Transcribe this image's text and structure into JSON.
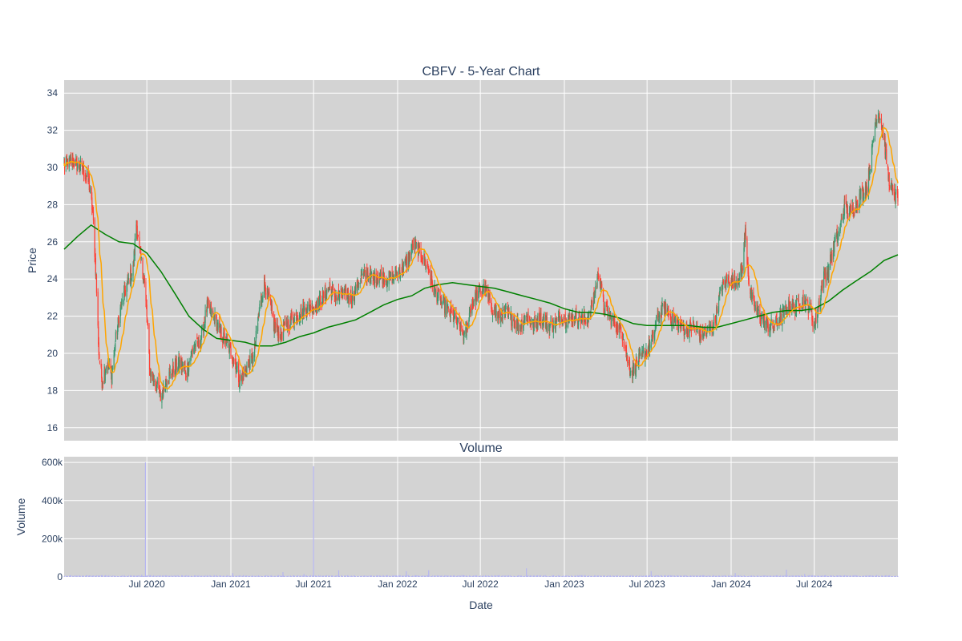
{
  "chart_data": {
    "type": "candlestick",
    "title": "CBFV - 5-Year Chart",
    "price_panel": {
      "ylabel": "Price",
      "ylim": [
        15.3,
        34.7
      ],
      "yticks": [
        16,
        18,
        20,
        22,
        24,
        26,
        28,
        30,
        32,
        34
      ],
      "grid": true,
      "background": "#d3d3d3",
      "colors": {
        "up": "#3d9970",
        "down": "#ff4136",
        "ma_short": "#ffa500",
        "ma_long": "#008000"
      },
      "close_approx": [
        [
          "2020-01-02",
          30.1
        ],
        [
          "2020-01-20",
          30.3
        ],
        [
          "2020-02-10",
          30.0
        ],
        [
          "2020-02-25",
          29.2
        ],
        [
          "2020-03-05",
          27.5
        ],
        [
          "2020-03-12",
          24.0
        ],
        [
          "2020-03-18",
          20.0
        ],
        [
          "2020-03-25",
          18.5
        ],
        [
          "2020-04-05",
          19.5
        ],
        [
          "2020-04-15",
          18.8
        ],
        [
          "2020-04-25",
          21.0
        ],
        [
          "2020-05-05",
          22.5
        ],
        [
          "2020-05-20",
          23.8
        ],
        [
          "2020-06-01",
          24.5
        ],
        [
          "2020-06-08",
          27.0
        ],
        [
          "2020-06-15",
          25.5
        ],
        [
          "2020-06-25",
          24.0
        ],
        [
          "2020-07-01",
          22.0
        ],
        [
          "2020-07-08",
          19.0
        ],
        [
          "2020-07-20",
          18.5
        ],
        [
          "2020-08-01",
          17.5
        ],
        [
          "2020-08-10",
          18.5
        ],
        [
          "2020-08-25",
          19.0
        ],
        [
          "2020-09-10",
          19.5
        ],
        [
          "2020-09-25",
          19.0
        ],
        [
          "2020-10-10",
          20.3
        ],
        [
          "2020-10-25",
          20.5
        ],
        [
          "2020-11-10",
          22.5
        ],
        [
          "2020-11-25",
          22.0
        ],
        [
          "2020-12-10",
          21.0
        ],
        [
          "2020-12-25",
          20.5
        ],
        [
          "2021-01-10",
          19.5
        ],
        [
          "2021-01-20",
          18.5
        ],
        [
          "2021-02-05",
          19.2
        ],
        [
          "2021-02-20",
          19.8
        ],
        [
          "2021-03-05",
          22.5
        ],
        [
          "2021-03-15",
          23.8
        ],
        [
          "2021-03-25",
          23.0
        ],
        [
          "2021-04-05",
          21.5
        ],
        [
          "2021-04-20",
          21.0
        ],
        [
          "2021-05-05",
          21.5
        ],
        [
          "2021-05-20",
          22.0
        ],
        [
          "2021-06-05",
          22.2
        ],
        [
          "2021-06-20",
          22.5
        ],
        [
          "2021-07-05",
          22.5
        ],
        [
          "2021-07-20",
          23.0
        ],
        [
          "2021-08-05",
          23.5
        ],
        [
          "2021-08-20",
          23.0
        ],
        [
          "2021-09-05",
          23.2
        ],
        [
          "2021-09-25",
          23.0
        ],
        [
          "2021-10-10",
          24.0
        ],
        [
          "2021-10-25",
          24.3
        ],
        [
          "2021-11-10",
          24.0
        ],
        [
          "2021-11-25",
          24.2
        ],
        [
          "2021-12-10",
          24.0
        ],
        [
          "2021-12-25",
          24.2
        ],
        [
          "2022-01-10",
          24.5
        ],
        [
          "2022-01-25",
          25.0
        ],
        [
          "2022-02-05",
          26.0
        ],
        [
          "2022-02-15",
          25.5
        ],
        [
          "2022-02-25",
          25.2
        ],
        [
          "2022-03-10",
          24.5
        ],
        [
          "2022-03-20",
          23.5
        ],
        [
          "2022-04-01",
          23.0
        ],
        [
          "2022-04-15",
          22.5
        ],
        [
          "2022-05-01",
          22.0
        ],
        [
          "2022-05-15",
          21.5
        ],
        [
          "2022-05-28",
          20.8
        ],
        [
          "2022-06-10",
          22.5
        ],
        [
          "2022-06-25",
          23.2
        ],
        [
          "2022-07-10",
          23.5
        ],
        [
          "2022-07-25",
          22.5
        ],
        [
          "2022-08-10",
          22.0
        ],
        [
          "2022-08-25",
          22.2
        ],
        [
          "2022-09-10",
          21.8
        ],
        [
          "2022-09-25",
          21.5
        ],
        [
          "2022-10-10",
          22.0
        ],
        [
          "2022-10-25",
          21.5
        ],
        [
          "2022-11-10",
          22.0
        ],
        [
          "2022-11-25",
          21.5
        ],
        [
          "2022-12-10",
          21.5
        ],
        [
          "2022-12-25",
          22.0
        ],
        [
          "2023-01-10",
          21.8
        ],
        [
          "2023-01-25",
          22.0
        ],
        [
          "2023-02-10",
          21.8
        ],
        [
          "2023-02-25",
          22.0
        ],
        [
          "2023-03-10",
          23.5
        ],
        [
          "2023-03-18",
          24.5
        ],
        [
          "2023-03-28",
          22.5
        ],
        [
          "2023-04-10",
          22.0
        ],
        [
          "2023-04-25",
          21.5
        ],
        [
          "2023-05-10",
          21.0
        ],
        [
          "2023-05-20",
          19.5
        ],
        [
          "2023-05-30",
          19.0
        ],
        [
          "2023-06-10",
          19.5
        ],
        [
          "2023-06-25",
          20.0
        ],
        [
          "2023-07-10",
          20.5
        ],
        [
          "2023-07-25",
          22.0
        ],
        [
          "2023-08-10",
          22.5
        ],
        [
          "2023-08-25",
          21.8
        ],
        [
          "2023-09-10",
          21.5
        ],
        [
          "2023-09-25",
          21.2
        ],
        [
          "2023-10-10",
          21.5
        ],
        [
          "2023-10-25",
          21.0
        ],
        [
          "2023-11-10",
          21.2
        ],
        [
          "2023-11-25",
          21.5
        ],
        [
          "2023-12-10",
          23.5
        ],
        [
          "2023-12-25",
          24.0
        ],
        [
          "2024-01-10",
          23.8
        ],
        [
          "2024-01-25",
          24.5
        ],
        [
          "2024-02-01",
          26.5
        ],
        [
          "2024-02-10",
          23.5
        ],
        [
          "2024-02-20",
          22.5
        ],
        [
          "2024-03-05",
          22.0
        ],
        [
          "2024-03-20",
          21.5
        ],
        [
          "2024-04-05",
          21.5
        ],
        [
          "2024-04-20",
          22.0
        ],
        [
          "2024-05-05",
          22.5
        ],
        [
          "2024-05-20",
          22.5
        ],
        [
          "2024-06-05",
          22.8
        ],
        [
          "2024-06-20",
          22.5
        ],
        [
          "2024-07-01",
          21.5
        ],
        [
          "2024-07-10",
          22.5
        ],
        [
          "2024-07-20",
          24.0
        ],
        [
          "2024-08-01",
          24.5
        ],
        [
          "2024-08-15",
          26.0
        ],
        [
          "2024-08-25",
          26.5
        ],
        [
          "2024-09-05",
          28.0
        ],
        [
          "2024-09-15",
          27.5
        ],
        [
          "2024-09-25",
          27.8
        ],
        [
          "2024-10-10",
          28.5
        ],
        [
          "2024-10-25",
          29.0
        ],
        [
          "2024-11-05",
          31.0
        ],
        [
          "2024-11-12",
          32.5
        ],
        [
          "2024-11-20",
          33.0
        ],
        [
          "2024-12-01",
          31.5
        ],
        [
          "2024-12-10",
          29.5
        ],
        [
          "2024-12-20",
          28.5
        ],
        [
          "2024-12-31",
          28.5
        ]
      ],
      "ma_long_approx": [
        [
          "2020-01-02",
          25.6
        ],
        [
          "2020-02-01",
          26.3
        ],
        [
          "2020-03-01",
          26.9
        ],
        [
          "2020-04-01",
          26.4
        ],
        [
          "2020-05-01",
          26.0
        ],
        [
          "2020-06-01",
          25.9
        ],
        [
          "2020-07-01",
          25.4
        ],
        [
          "2020-08-01",
          24.4
        ],
        [
          "2020-09-01",
          23.2
        ],
        [
          "2020-10-01",
          22.0
        ],
        [
          "2020-11-01",
          21.3
        ],
        [
          "2020-12-01",
          20.8
        ],
        [
          "2021-01-01",
          20.7
        ],
        [
          "2021-02-01",
          20.6
        ],
        [
          "2021-03-01",
          20.4
        ],
        [
          "2021-04-01",
          20.4
        ],
        [
          "2021-05-01",
          20.6
        ],
        [
          "2021-06-01",
          20.9
        ],
        [
          "2021-07-01",
          21.1
        ],
        [
          "2021-08-01",
          21.4
        ],
        [
          "2021-09-01",
          21.6
        ],
        [
          "2021-10-01",
          21.8
        ],
        [
          "2021-11-01",
          22.2
        ],
        [
          "2021-12-01",
          22.6
        ],
        [
          "2022-01-01",
          22.9
        ],
        [
          "2022-02-01",
          23.1
        ],
        [
          "2022-03-01",
          23.5
        ],
        [
          "2022-04-01",
          23.7
        ],
        [
          "2022-05-01",
          23.8
        ],
        [
          "2022-06-01",
          23.7
        ],
        [
          "2022-07-01",
          23.6
        ],
        [
          "2022-08-01",
          23.5
        ],
        [
          "2022-09-01",
          23.3
        ],
        [
          "2022-10-01",
          23.1
        ],
        [
          "2022-11-01",
          22.9
        ],
        [
          "2022-12-01",
          22.7
        ],
        [
          "2023-01-01",
          22.4
        ],
        [
          "2023-02-01",
          22.2
        ],
        [
          "2023-03-01",
          22.2
        ],
        [
          "2023-04-01",
          22.1
        ],
        [
          "2023-05-01",
          21.9
        ],
        [
          "2023-06-01",
          21.6
        ],
        [
          "2023-07-01",
          21.5
        ],
        [
          "2023-08-01",
          21.5
        ],
        [
          "2023-09-01",
          21.5
        ],
        [
          "2023-10-01",
          21.5
        ],
        [
          "2023-11-01",
          21.4
        ],
        [
          "2023-12-01",
          21.4
        ],
        [
          "2024-01-01",
          21.6
        ],
        [
          "2024-02-01",
          21.8
        ],
        [
          "2024-03-01",
          22.0
        ],
        [
          "2024-04-01",
          22.2
        ],
        [
          "2024-05-01",
          22.3
        ],
        [
          "2024-06-01",
          22.3
        ],
        [
          "2024-07-01",
          22.4
        ],
        [
          "2024-08-01",
          22.8
        ],
        [
          "2024-09-01",
          23.4
        ],
        [
          "2024-10-01",
          23.9
        ],
        [
          "2024-11-01",
          24.4
        ],
        [
          "2024-12-01",
          25.0
        ],
        [
          "2024-12-31",
          25.3
        ]
      ]
    },
    "volume_panel": {
      "title": "Volume",
      "ylabel": "Volume",
      "ylim": [
        0,
        630000
      ],
      "yticks": [
        0,
        200000,
        400000,
        600000
      ],
      "ytick_labels": [
        "0",
        "200k",
        "400k",
        "600k"
      ],
      "background": "#d3d3d3",
      "bar_color": "#b6b6f0",
      "baseline_volume": 6000,
      "spikes": [
        [
          "2020-06-28",
          600000
        ],
        [
          "2021-07-01",
          580000
        ],
        [
          "2020-06-20",
          12000
        ],
        [
          "2021-01-05",
          20000
        ],
        [
          "2021-04-25",
          25000
        ],
        [
          "2021-06-10",
          15000
        ],
        [
          "2021-08-25",
          35000
        ],
        [
          "2022-01-20",
          30000
        ],
        [
          "2022-03-10",
          35000
        ],
        [
          "2022-10-10",
          45000
        ],
        [
          "2023-07-10",
          30000
        ],
        [
          "2024-01-10",
          20000
        ],
        [
          "2024-05-01",
          38000
        ],
        [
          "2024-06-10",
          15000
        ]
      ]
    },
    "xlabel": "Date",
    "x_range": [
      "2020-01-02",
      "2024-12-31"
    ],
    "x_ticks": [
      [
        "2020-07-01",
        "Jul 2020"
      ],
      [
        "2021-01-01",
        "Jan 2021"
      ],
      [
        "2021-07-01",
        "Jul 2021"
      ],
      [
        "2022-01-01",
        "Jan 2022"
      ],
      [
        "2022-07-01",
        "Jul 2022"
      ],
      [
        "2023-01-01",
        "Jan 2023"
      ],
      [
        "2023-07-01",
        "Jul 2023"
      ],
      [
        "2024-01-01",
        "Jan 2024"
      ],
      [
        "2024-07-01",
        "Jul 2024"
      ]
    ]
  }
}
